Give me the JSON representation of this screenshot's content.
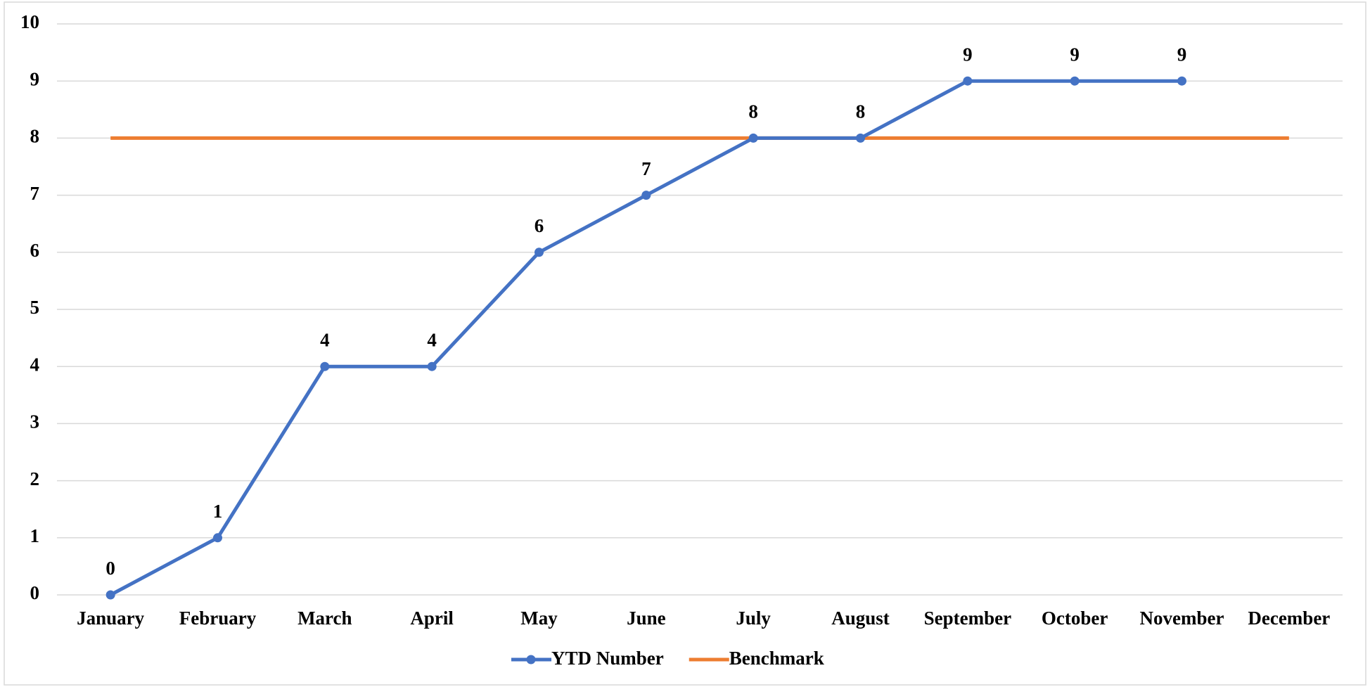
{
  "chart_data": {
    "type": "line",
    "categories": [
      "January",
      "February",
      "March",
      "April",
      "May",
      "June",
      "July",
      "August",
      "September",
      "October",
      "November",
      "December"
    ],
    "series": [
      {
        "name": "YTD Number",
        "color": "#4472c4",
        "markers": true,
        "data_labels": true,
        "values": [
          0,
          1,
          4,
          4,
          6,
          7,
          8,
          8,
          9,
          9,
          9,
          null
        ]
      },
      {
        "name": "Benchmark",
        "color": "#ed7d31",
        "markers": false,
        "data_labels": false,
        "values": [
          8,
          8,
          8,
          8,
          8,
          8,
          8,
          8,
          8,
          8,
          8,
          8
        ]
      }
    ],
    "ylim": [
      0,
      10
    ],
    "yticks": [
      0,
      1,
      2,
      3,
      4,
      5,
      6,
      7,
      8,
      9,
      10
    ],
    "grid": true,
    "legend": "bottom"
  }
}
